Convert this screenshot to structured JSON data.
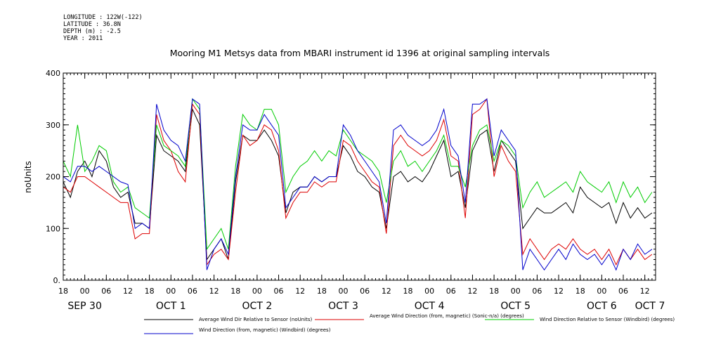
{
  "metadata": {
    "longitude": "LONGITUDE : 122W(-122)",
    "latitude": "LATITUDE : 36.8N",
    "depth": "DEPTH (m) : -2.5",
    "year": "YEAR : 2011"
  },
  "chart_data": {
    "type": "line",
    "title": "Mooring M1 Metsys data from MBARI instrument id 1396 at original sampling intervals",
    "ylabel": "noUnits",
    "xlabel": "",
    "ylim": [
      0,
      400
    ],
    "yticks": [
      0,
      100,
      200,
      300,
      400
    ],
    "ytick_labels": [
      "0.",
      "100",
      "200",
      "300",
      "400"
    ],
    "xlim": [
      18,
      183
    ],
    "xticks": [
      {
        "x": 18,
        "label": "18"
      },
      {
        "x": 24,
        "label": "00"
      },
      {
        "x": 30,
        "label": "06"
      },
      {
        "x": 36,
        "label": "12"
      },
      {
        "x": 42,
        "label": "18"
      },
      {
        "x": 48,
        "label": "00"
      },
      {
        "x": 54,
        "label": "06"
      },
      {
        "x": 60,
        "label": "12"
      },
      {
        "x": 66,
        "label": "18"
      },
      {
        "x": 72,
        "label": "00"
      },
      {
        "x": 78,
        "label": "06"
      },
      {
        "x": 84,
        "label": "12"
      },
      {
        "x": 90,
        "label": "18"
      },
      {
        "x": 96,
        "label": "00"
      },
      {
        "x": 102,
        "label": "06"
      },
      {
        "x": 108,
        "label": "12"
      },
      {
        "x": 114,
        "label": "18"
      },
      {
        "x": 120,
        "label": "00"
      },
      {
        "x": 126,
        "label": "06"
      },
      {
        "x": 132,
        "label": "12"
      },
      {
        "x": 138,
        "label": "18"
      },
      {
        "x": 144,
        "label": "00"
      },
      {
        "x": 150,
        "label": "06"
      },
      {
        "x": 156,
        "label": "12"
      },
      {
        "x": 162,
        "label": "18"
      },
      {
        "x": 168,
        "label": "00"
      },
      {
        "x": 174,
        "label": "06"
      },
      {
        "x": 180,
        "label": "12"
      }
    ],
    "day_labels": [
      {
        "x": 24,
        "label": "SEP 30"
      },
      {
        "x": 48,
        "label": "OCT  1"
      },
      {
        "x": 72,
        "label": "OCT  2"
      },
      {
        "x": 96,
        "label": "OCT  3"
      },
      {
        "x": 120,
        "label": "OCT  4"
      },
      {
        "x": 144,
        "label": "OCT  5"
      },
      {
        "x": 168,
        "label": "OCT  6"
      },
      {
        "x": 192,
        "label": "OCT  7"
      }
    ],
    "x_units": "hours since SEP 29 00:00",
    "series": [
      {
        "name": "Average Wind Dir Relative to Sensor (noUnits)",
        "color": "#000000",
        "x": [
          18,
          20,
          22,
          24,
          26,
          28,
          30,
          32,
          34,
          36,
          38,
          40,
          42,
          44,
          46,
          48,
          50,
          52,
          54,
          56,
          58,
          60,
          62,
          64,
          66,
          68,
          70,
          72,
          74,
          76,
          78,
          80,
          82,
          84,
          86,
          88,
          90,
          92,
          94,
          96,
          98,
          100,
          102,
          104,
          106,
          108,
          110,
          112,
          114,
          116,
          118,
          120,
          122,
          124,
          126,
          128,
          130,
          132,
          134,
          136,
          138,
          140,
          142,
          144,
          146,
          148,
          150,
          152,
          154,
          156,
          158,
          160,
          162,
          164,
          166,
          168,
          170,
          172,
          174,
          176,
          178,
          180,
          182
        ],
        "values": [
          190,
          160,
          210,
          230,
          200,
          250,
          230,
          180,
          160,
          170,
          110,
          110,
          100,
          280,
          250,
          240,
          230,
          210,
          330,
          300,
          40,
          60,
          80,
          40,
          190,
          280,
          270,
          270,
          290,
          270,
          240,
          130,
          170,
          180,
          180,
          200,
          190,
          200,
          200,
          260,
          240,
          210,
          200,
          180,
          170,
          100,
          200,
          210,
          190,
          200,
          190,
          210,
          240,
          270,
          200,
          210,
          140,
          250,
          280,
          290,
          210,
          270,
          250,
          230,
          100,
          120,
          140,
          130,
          130,
          140,
          150,
          130,
          180,
          160,
          150,
          140,
          150,
          110,
          150,
          120,
          140,
          120,
          130
        ]
      },
      {
        "name": "Average Wind Direction (from, magnetic) (Sonic-n/a) (degrees)",
        "color": "#dd0000",
        "x": [
          18,
          20,
          22,
          24,
          26,
          28,
          30,
          32,
          34,
          36,
          38,
          40,
          42,
          44,
          46,
          48,
          50,
          52,
          54,
          56,
          58,
          60,
          62,
          64,
          66,
          68,
          70,
          72,
          74,
          76,
          78,
          80,
          82,
          84,
          86,
          88,
          90,
          92,
          94,
          96,
          98,
          100,
          102,
          104,
          106,
          108,
          110,
          112,
          114,
          116,
          118,
          120,
          122,
          124,
          126,
          128,
          130,
          132,
          134,
          136,
          138,
          140,
          142,
          144,
          146,
          148,
          150,
          152,
          154,
          156,
          158,
          160,
          162,
          164,
          166,
          168,
          170,
          172,
          174,
          176,
          178,
          180,
          182
        ],
        "values": [
          180,
          170,
          200,
          200,
          190,
          180,
          170,
          160,
          150,
          150,
          80,
          90,
          90,
          320,
          270,
          250,
          210,
          190,
          340,
          320,
          30,
          50,
          60,
          40,
          170,
          280,
          260,
          270,
          300,
          290,
          250,
          120,
          150,
          170,
          170,
          190,
          180,
          190,
          190,
          270,
          260,
          230,
          210,
          190,
          180,
          90,
          260,
          280,
          260,
          250,
          240,
          250,
          270,
          310,
          240,
          230,
          120,
          320,
          330,
          350,
          200,
          260,
          230,
          210,
          50,
          80,
          60,
          40,
          60,
          70,
          60,
          80,
          60,
          50,
          60,
          40,
          60,
          30,
          60,
          40,
          60,
          40,
          50
        ]
      },
      {
        "name": "Wind Direction Relative to Sensor (Windbird) (degrees)",
        "color": "#00cc00",
        "x": [
          18,
          20,
          22,
          24,
          26,
          28,
          30,
          32,
          34,
          36,
          38,
          40,
          42,
          44,
          46,
          48,
          50,
          52,
          54,
          56,
          58,
          60,
          62,
          64,
          66,
          68,
          70,
          72,
          74,
          76,
          78,
          80,
          82,
          84,
          86,
          88,
          90,
          92,
          94,
          96,
          98,
          100,
          102,
          104,
          106,
          108,
          110,
          112,
          114,
          116,
          118,
          120,
          122,
          124,
          126,
          128,
          130,
          132,
          134,
          136,
          138,
          140,
          142,
          144,
          146,
          148,
          150,
          152,
          154,
          156,
          158,
          160,
          162,
          164,
          166,
          168,
          170,
          172,
          174,
          176,
          178,
          180,
          182
        ],
        "values": [
          230,
          200,
          300,
          210,
          230,
          260,
          250,
          190,
          170,
          180,
          140,
          130,
          120,
          300,
          260,
          250,
          240,
          220,
          350,
          330,
          60,
          80,
          100,
          60,
          220,
          320,
          300,
          290,
          330,
          330,
          300,
          170,
          200,
          220,
          230,
          250,
          230,
          250,
          240,
          290,
          270,
          250,
          240,
          230,
          210,
          150,
          230,
          250,
          220,
          230,
          210,
          230,
          250,
          280,
          220,
          220,
          180,
          260,
          290,
          300,
          230,
          270,
          260,
          240,
          140,
          170,
          190,
          160,
          170,
          180,
          190,
          170,
          210,
          190,
          180,
          170,
          190,
          150,
          190,
          160,
          180,
          150,
          170
        ]
      },
      {
        "name": "Wind Direction (from, magnetic) (Windbird) (degrees)",
        "color": "#0000cc",
        "x": [
          18,
          20,
          22,
          24,
          26,
          28,
          30,
          32,
          34,
          36,
          38,
          40,
          42,
          44,
          46,
          48,
          50,
          52,
          54,
          56,
          58,
          60,
          62,
          64,
          66,
          68,
          70,
          72,
          74,
          76,
          78,
          80,
          82,
          84,
          86,
          88,
          90,
          92,
          94,
          96,
          98,
          100,
          102,
          104,
          106,
          108,
          110,
          112,
          114,
          116,
          118,
          120,
          122,
          124,
          126,
          128,
          130,
          132,
          134,
          136,
          138,
          140,
          142,
          144,
          146,
          148,
          150,
          152,
          154,
          156,
          158,
          160,
          162,
          164,
          166,
          168,
          170,
          172,
          174,
          176,
          178,
          180,
          182
        ],
        "values": [
          200,
          190,
          220,
          220,
          210,
          220,
          210,
          200,
          190,
          185,
          100,
          110,
          100,
          340,
          290,
          270,
          260,
          230,
          350,
          340,
          20,
          60,
          80,
          50,
          200,
          300,
          290,
          290,
          320,
          300,
          280,
          140,
          160,
          180,
          180,
          200,
          190,
          200,
          200,
          300,
          280,
          250,
          230,
          210,
          190,
          110,
          290,
          300,
          280,
          270,
          260,
          270,
          290,
          330,
          260,
          240,
          150,
          340,
          340,
          350,
          240,
          290,
          270,
          250,
          20,
          60,
          40,
          20,
          40,
          60,
          40,
          70,
          50,
          40,
          50,
          30,
          50,
          20,
          60,
          40,
          70,
          50,
          60
        ]
      }
    ],
    "legend_placement": "bottom",
    "grid": false
  }
}
